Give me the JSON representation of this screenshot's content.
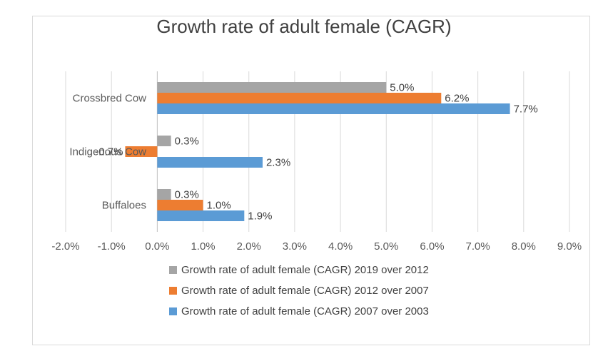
{
  "chart_data": {
    "type": "bar",
    "orientation": "horizontal",
    "title": "Growth rate of adult female (CAGR)",
    "categories": [
      "Crossbred Cow",
      "Indigenous Cow",
      "Buffaloes"
    ],
    "category_label_texts": [
      "Crossbred Cow",
      "Indigenous Cow",
      "Buffaloes"
    ],
    "series": [
      {
        "name": "Growth rate of adult female (CAGR) 2019 over 2012",
        "color": "#a5a5a5",
        "values": [
          5.0,
          0.3,
          0.3
        ],
        "labels": [
          "5.0%",
          "0.3%",
          "0.3%"
        ]
      },
      {
        "name": "Growth rate of adult female (CAGR) 2012 over 2007",
        "color": "#ed7d31",
        "values": [
          6.2,
          -0.7,
          1.0
        ],
        "labels": [
          "6.2%",
          "-0.7%",
          "1.0%"
        ]
      },
      {
        "name": "Growth rate of adult female (CAGR) 2007 over 2003",
        "color": "#5b9bd5",
        "values": [
          7.7,
          2.3,
          1.9
        ],
        "labels": [
          "7.7%",
          "2.3%",
          "1.9%"
        ]
      }
    ],
    "xlim": [
      -2.0,
      9.0
    ],
    "xticks": [
      -2.0,
      -1.0,
      0.0,
      1.0,
      2.0,
      3.0,
      4.0,
      5.0,
      6.0,
      7.0,
      8.0,
      9.0
    ],
    "xtick_labels": [
      "-2.0%",
      "-1.0%",
      "0.0%",
      "1.0%",
      "2.0%",
      "3.0%",
      "4.0%",
      "5.0%",
      "6.0%",
      "7.0%",
      "8.0%",
      "9.0%"
    ],
    "grid": "vertical",
    "legend_position": "bottom"
  }
}
